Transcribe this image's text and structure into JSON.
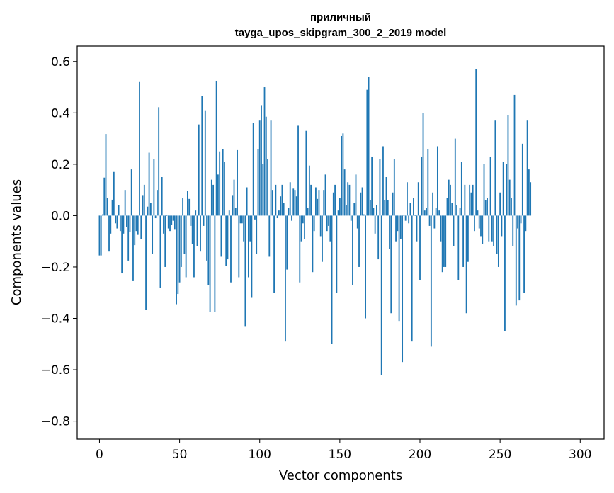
{
  "chart_data": {
    "type": "bar",
    "title": [
      "приличный",
      "tayga_upos_skipgram_300_2_2019 model"
    ],
    "xlabel": "Vector components",
    "ylabel": "Components values",
    "xlim": [
      -13.9,
      314.9
    ],
    "ylim": [
      -0.87,
      0.66
    ],
    "xticks": [
      0,
      50,
      100,
      150,
      200,
      250,
      300
    ],
    "xtick_labels": [
      "0",
      "50",
      "100",
      "150",
      "200",
      "250",
      "300"
    ],
    "yticks": [
      -0.8,
      -0.6,
      -0.4,
      -0.2,
      0.0,
      0.2,
      0.4,
      0.6
    ],
    "ytick_labels": [
      "−0.8",
      "−0.6",
      "−0.4",
      "−0.2",
      "0.0",
      "0.2",
      "0.4",
      "0.6"
    ],
    "bar_color": "#1f77b4",
    "grid": false,
    "values": [
      -0.155,
      -0.155,
      0.005,
      0.148,
      0.318,
      0.07,
      -0.14,
      -0.07,
      0.062,
      0.17,
      -0.03,
      -0.05,
      0.04,
      -0.06,
      -0.225,
      -0.07,
      0.1,
      -0.045,
      -0.175,
      -0.065,
      0.18,
      -0.255,
      -0.115,
      -0.06,
      -0.075,
      0.52,
      -0.09,
      0.08,
      0.12,
      -0.368,
      0.035,
      0.245,
      0.05,
      -0.15,
      0.22,
      -0.01,
      0.1,
      0.422,
      -0.28,
      0.15,
      -0.07,
      -0.2,
      0.0,
      -0.05,
      -0.06,
      -0.035,
      -0.02,
      -0.055,
      -0.345,
      -0.305,
      -0.26,
      -0.2,
      0.07,
      -0.15,
      -0.24,
      0.095,
      0.065,
      -0.04,
      -0.11,
      -0.24,
      0.02,
      -0.12,
      0.355,
      -0.14,
      0.467,
      -0.04,
      0.41,
      -0.175,
      -0.27,
      -0.375,
      0.14,
      0.12,
      -0.375,
      0.525,
      0.16,
      0.25,
      -0.16,
      0.26,
      0.21,
      -0.195,
      -0.17,
      0.02,
      -0.26,
      0.08,
      0.14,
      0.03,
      0.255,
      -0.24,
      -0.03,
      -0.03,
      -0.1,
      -0.43,
      0.11,
      -0.24,
      -0.1,
      -0.32,
      0.36,
      -0.015,
      -0.15,
      0.26,
      0.37,
      0.43,
      0.2,
      0.5,
      0.385,
      0.22,
      -0.16,
      0.37,
      0.1,
      -0.3,
      0.12,
      -0.01,
      0.02,
      0.075,
      0.12,
      0.05,
      -0.49,
      -0.21,
      0.03,
      0.13,
      -0.02,
      0.105,
      0.1,
      0.075,
      0.35,
      -0.26,
      -0.1,
      -0.03,
      -0.09,
      0.33,
      0.03,
      0.195,
      0.12,
      -0.22,
      -0.06,
      0.11,
      0.065,
      0.1,
      -0.08,
      -0.18,
      0.1,
      0.16,
      -0.06,
      -0.04,
      -0.1,
      -0.5,
      0.09,
      0.12,
      -0.3,
      0.02,
      0.07,
      0.31,
      0.32,
      0.18,
      0.04,
      0.13,
      0.12,
      -0.02,
      -0.27,
      0.05,
      0.16,
      -0.05,
      -0.2,
      0.09,
      0.11,
      0.005,
      -0.4,
      0.49,
      0.54,
      0.06,
      0.23,
      0.03,
      -0.07,
      0.04,
      -0.17,
      0.22,
      -0.62,
      0.27,
      0.06,
      0.15,
      0.06,
      -0.13,
      -0.38,
      0.09,
      0.22,
      -0.1,
      -0.06,
      -0.41,
      -0.09,
      -0.57,
      0.0,
      -0.02,
      0.13,
      -0.03,
      0.05,
      -0.49,
      0.07,
      0.0,
      -0.1,
      0.13,
      -0.25,
      0.23,
      0.4,
      0.02,
      0.03,
      0.26,
      -0.04,
      -0.51,
      0.09,
      -0.05,
      0.03,
      0.27,
      0.02,
      -0.1,
      -0.22,
      -0.2,
      -0.2,
      0.07,
      0.14,
      0.12,
      0.05,
      -0.12,
      0.3,
      0.04,
      -0.25,
      0.03,
      0.21,
      -0.2,
      0.12,
      -0.38,
      -0.18,
      0.12,
      0.09,
      0.12,
      -0.06,
      0.57,
      0.02,
      -0.05,
      -0.08,
      -0.11,
      0.2,
      0.06,
      0.07,
      -0.1,
      0.23,
      -0.1,
      -0.12,
      0.37,
      -0.15,
      -0.2,
      0.09,
      -0.08,
      0.21,
      -0.45,
      0.2,
      0.39,
      0.14,
      0.07,
      -0.12,
      0.47,
      -0.35,
      -0.05,
      -0.33,
      -0.03,
      0.28,
      -0.3,
      -0.06,
      0.37,
      0.18,
      0.13
    ]
  }
}
